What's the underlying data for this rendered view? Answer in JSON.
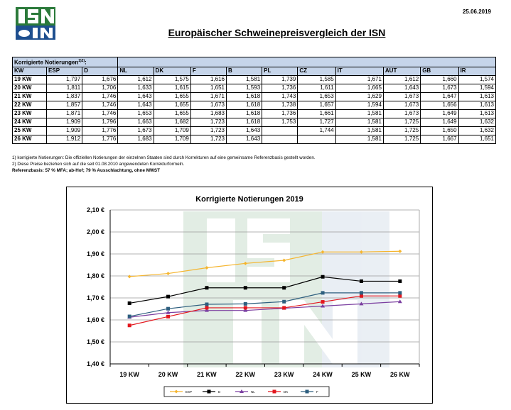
{
  "header": {
    "logo_text": "ISN",
    "date": "25.06.2019",
    "title": "Europäischer Schweinepreisvergleich der ISN"
  },
  "table": {
    "caption": "Korrigierte Notierungen",
    "caption_sup": "1)2)",
    "columns": [
      "KW",
      "ESP",
      "D",
      "NL",
      "DK",
      "F",
      "B",
      "PL",
      "CZ",
      "IT",
      "AUT",
      "GB",
      "IR"
    ],
    "rows": [
      [
        "19 KW",
        "1,797",
        "1,676",
        "1,612",
        "1,575",
        "1,616",
        "1,581",
        "1,739",
        "1,585",
        "1,671",
        "1,612",
        "1,660",
        "1,574"
      ],
      [
        "20 KW",
        "1,811",
        "1,706",
        "1,633",
        "1,615",
        "1,651",
        "1,593",
        "1,736",
        "1,611",
        "1,665",
        "1,643",
        "1,673",
        "1,594"
      ],
      [
        "21 KW",
        "1,837",
        "1,746",
        "1,643",
        "1,655",
        "1,671",
        "1,618",
        "1,743",
        "1,653",
        "1,629",
        "1,673",
        "1,647",
        "1,613"
      ],
      [
        "22 KW",
        "1,857",
        "1,746",
        "1,643",
        "1,655",
        "1,673",
        "1,618",
        "1,738",
        "1,657",
        "1,594",
        "1,673",
        "1,656",
        "1,613"
      ],
      [
        "23 KW",
        "1,871",
        "1,746",
        "1,653",
        "1,655",
        "1,683",
        "1,618",
        "1,736",
        "1,661",
        "1,581",
        "1,673",
        "1,649",
        "1,613"
      ],
      [
        "24 KW",
        "1,909",
        "1,796",
        "1,663",
        "1,682",
        "1,723",
        "1,618",
        "1,753",
        "1,727",
        "1,581",
        "1,725",
        "1,649",
        "1,632"
      ],
      [
        "25 KW",
        "1,909",
        "1,776",
        "1,673",
        "1,709",
        "1,723",
        "1,643",
        "",
        "1,744",
        "1,581",
        "1,725",
        "1,650",
        "1,632"
      ],
      [
        "26 KW",
        "1,912",
        "1,776",
        "1,683",
        "1,709",
        "1,723",
        "1,643",
        "",
        "",
        "1,581",
        "1,725",
        "1,667",
        "1,651"
      ]
    ]
  },
  "notes": {
    "line1": "1) korrigierte Notierungen: Die offiziellen Notierungen der einzelnen Staaten sind durch Korrekturen auf eine gemeinsame Referenzbasis gestellt worden.",
    "line2": "2) Diese Preise beziehen sich auf die seit 01.08.2010 angewendeten Korrekturformeln.",
    "line3": "Referenzbasis: 57 % MFA; ab-Hof; 79 % Ausschlachtung, ohne MWST"
  },
  "chart_data": {
    "type": "line",
    "title": "Korrigierte Notierungen 2019",
    "categories": [
      "19 KW",
      "20 KW",
      "21 KW",
      "22 KW",
      "23 KW",
      "24 KW",
      "25 KW",
      "26 KW"
    ],
    "ylim": [
      1.4,
      2.1
    ],
    "yticks": [
      "1,40 €",
      "1,50 €",
      "1,60 €",
      "1,70 €",
      "1,80 €",
      "1,90 €",
      "2,00 €",
      "2,10 €"
    ],
    "grid": true,
    "legend_position": "bottom",
    "series": [
      {
        "name": "ESP",
        "color": "#f5b52e",
        "marker": "diamond",
        "values": [
          1.797,
          1.811,
          1.837,
          1.857,
          1.871,
          1.909,
          1.909,
          1.912
        ]
      },
      {
        "name": "D",
        "color": "#000000",
        "marker": "square",
        "values": [
          1.676,
          1.706,
          1.746,
          1.746,
          1.746,
          1.796,
          1.776,
          1.776
        ]
      },
      {
        "name": "NL",
        "color": "#7b3fa0",
        "marker": "triangle",
        "values": [
          1.612,
          1.633,
          1.643,
          1.643,
          1.653,
          1.663,
          1.673,
          1.683
        ]
      },
      {
        "name": "DK",
        "color": "#e3171e",
        "marker": "square",
        "values": [
          1.575,
          1.615,
          1.655,
          1.655,
          1.655,
          1.682,
          1.709,
          1.709
        ]
      },
      {
        "name": "F",
        "color": "#2e5f7f",
        "marker": "square",
        "values": [
          1.616,
          1.651,
          1.671,
          1.673,
          1.683,
          1.723,
          1.723,
          1.723
        ]
      }
    ]
  }
}
